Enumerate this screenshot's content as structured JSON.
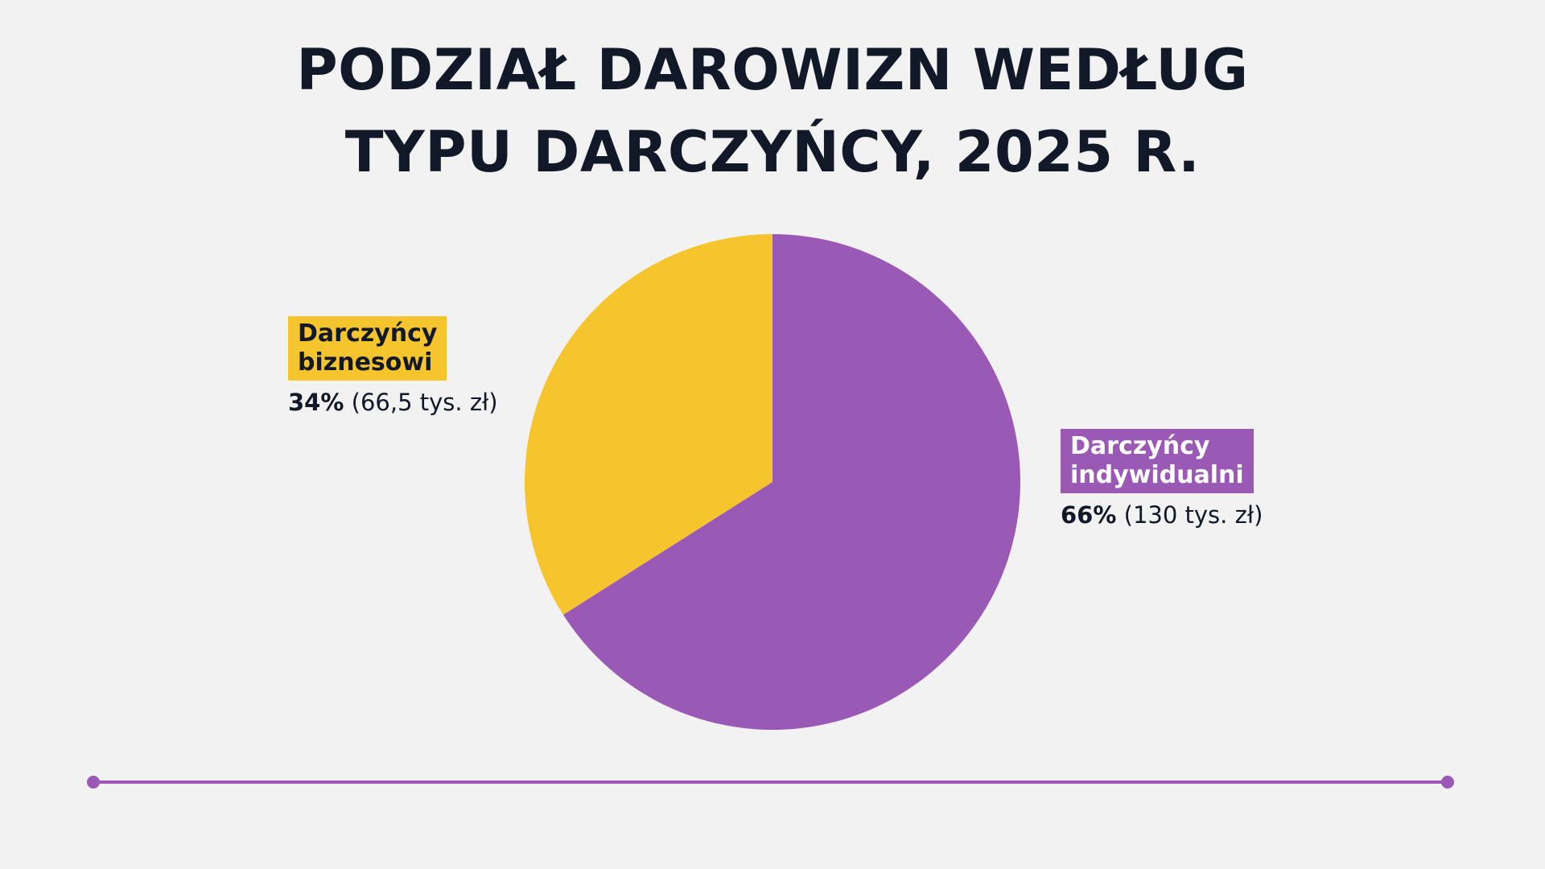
{
  "title": {
    "line1": "PODZIAŁ DAROWIZN WEDŁUG",
    "line2": "TYPU DARCZYŃCY, 2025 R."
  },
  "chart_data": {
    "type": "pie",
    "title": "PODZIAŁ DAROWIZN WEDŁUG TYPU DARCZYŃCY, 2025 R.",
    "slices": [
      {
        "name_line1": "Darczyńcy",
        "name_line2": "biznesowi",
        "percent": 34,
        "percent_label": "34%",
        "amount_label": "(66,5 tys. zł)",
        "color": "#f6c42c"
      },
      {
        "name_line1": "Darczyńcy",
        "name_line2": "indywidualni",
        "percent": 66,
        "percent_label": "66%",
        "amount_label": "(130 tys. zł)",
        "color": "#9b59b6"
      }
    ]
  },
  "colors": {
    "background": "#f2f2f2",
    "accent": "#9b59b6",
    "highlight": "#f6c42c",
    "text": "#111827"
  }
}
